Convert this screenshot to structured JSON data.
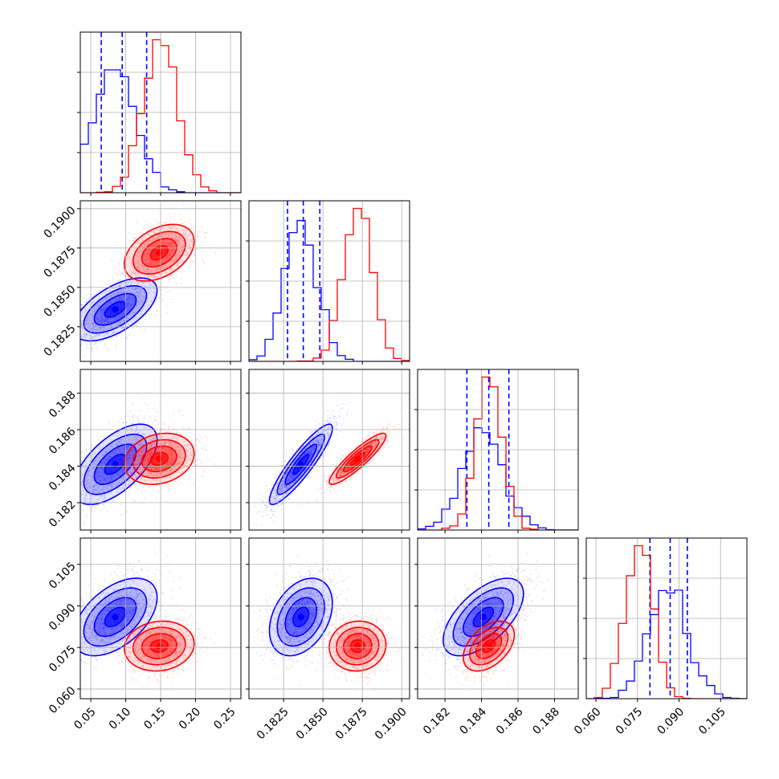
{
  "colors": {
    "series_a": "#0000ff",
    "series_b": "#ff0000"
  },
  "chart_data": {
    "type": "corner",
    "grid": true,
    "parameters": [
      {
        "range": [
          0.035,
          0.265
        ],
        "ticks": [
          0.05,
          0.1,
          0.15,
          0.2,
          0.25
        ],
        "tick_labels": [
          "0.05",
          "0.10",
          "0.15",
          "0.20",
          "0.25"
        ]
      },
      {
        "range": [
          0.1803,
          0.1905
        ],
        "ticks": [
          0.1825,
          0.185,
          0.1875,
          0.19
        ],
        "tick_labels": [
          "0.1825",
          "0.1850",
          "0.1875",
          "0.1900"
        ]
      },
      {
        "range": [
          0.1805,
          0.1893
        ],
        "ticks": [
          0.182,
          0.184,
          0.186,
          0.188
        ],
        "tick_labels": [
          "0.182",
          "0.184",
          "0.186",
          "0.188"
        ]
      },
      {
        "range": [
          0.0565,
          0.1145
        ],
        "ticks": [
          0.06,
          0.075,
          0.09,
          0.105
        ],
        "tick_labels": [
          "0.060",
          "0.075",
          "0.090",
          "0.105"
        ]
      }
    ],
    "series": [
      {
        "color": "#0000ff",
        "mean": [
          0.085,
          0.1836,
          0.1841,
          0.086
        ],
        "std": [
          0.03,
          0.001,
          0.0011,
          0.007
        ],
        "corr": [
          [
            1,
            0.6,
            0.6,
            0.5
          ],
          [
            0.6,
            1,
            0.9,
            0.35
          ],
          [
            0.6,
            0.9,
            1,
            0.6
          ],
          [
            0.5,
            0.35,
            0.6,
            1
          ]
        ],
        "quantiles": [
          [
            0.065,
            0.095,
            0.13
          ],
          [
            0.18275,
            0.18375,
            0.1848
          ],
          [
            0.1832,
            0.1844,
            0.1855
          ],
          [
            0.0795,
            0.0868,
            0.093
          ]
        ]
      },
      {
        "color": "#ff0000",
        "mean": [
          0.148,
          0.1872,
          0.1844,
          0.0755
        ],
        "std": [
          0.025,
          0.0009,
          0.0007,
          0.0045
        ],
        "corr": [
          [
            1,
            0.4,
            0.2,
            0.1
          ],
          [
            0.4,
            1,
            0.9,
            0.05
          ],
          [
            0.2,
            0.9,
            1,
            0.45
          ],
          [
            0.1,
            0.05,
            0.45,
            1
          ]
        ],
        "quantiles": []
      }
    ]
  }
}
